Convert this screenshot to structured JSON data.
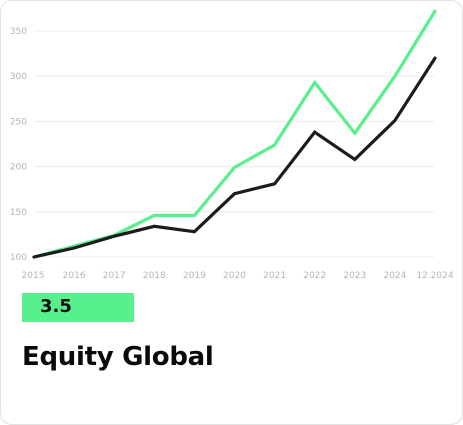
{
  "card": {
    "score": "3.5",
    "fund_name": "Equity Global",
    "accent_color": "#58f08c"
  },
  "chart_data": {
    "type": "line",
    "x": [
      "2015",
      "2016",
      "2017",
      "2018",
      "2019",
      "2020",
      "2021",
      "2022",
      "2023",
      "2024",
      "12.2024"
    ],
    "series": [
      {
        "color": "#58f08c",
        "values": [
          100,
          112,
          124,
          146,
          146,
          199,
          224,
          293,
          237,
          300,
          372
        ]
      },
      {
        "color": "#1c1c1c",
        "values": [
          100,
          110,
          123,
          134,
          128,
          170,
          181,
          238,
          208,
          251,
          320
        ]
      }
    ],
    "yticks": [
      "100",
      "150",
      "200",
      "250",
      "300",
      "350"
    ],
    "ylim": [
      100,
      350
    ],
    "grid": true,
    "title": "",
    "xlabel": "",
    "ylabel": ""
  }
}
